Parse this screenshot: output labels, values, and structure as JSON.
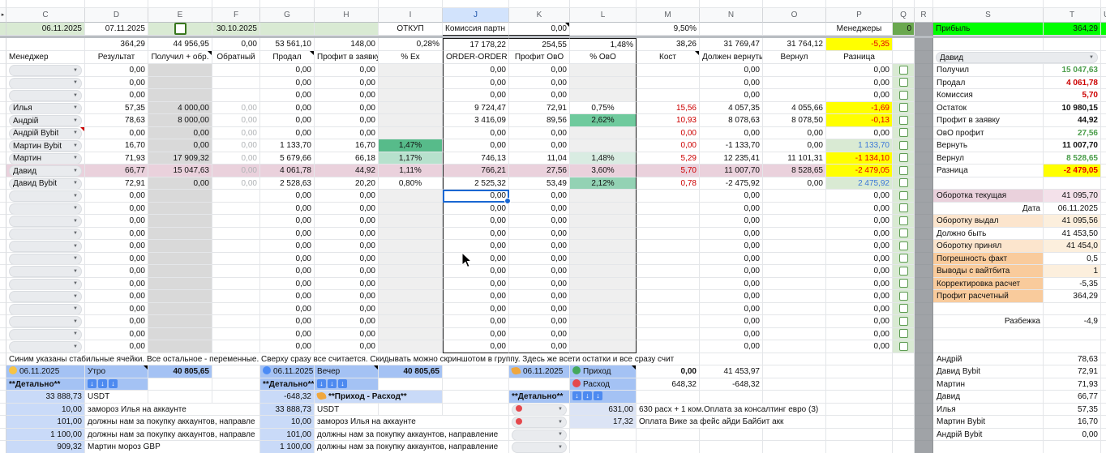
{
  "columns": {
    "letters": [
      "C",
      "D",
      "E",
      "F",
      "G",
      "H",
      "I",
      "J",
      "K",
      "L",
      "M",
      "N",
      "O",
      "P",
      "Q",
      "R",
      "S",
      "T",
      "U"
    ],
    "selected": "J"
  },
  "freeze": {
    "date_row": {
      "c": "06.11.2025",
      "d": "07.11.2025",
      "f": "30.10.2025",
      "i": "ОТКУП",
      "j": "Комиссия партн",
      "k": "0,00",
      "m": "9,50%",
      "p": "Менеджеры",
      "q": "0",
      "s": "Прибыль",
      "t": "364,29"
    },
    "totals_row": {
      "d": "364,29",
      "e": "44 956,95",
      "f": "0,00",
      "g": "53 561,10",
      "h": "148,00",
      "i": "0,28%",
      "j": "17 178,22",
      "k": "254,55",
      "l": "1,48%",
      "m": "38,26",
      "n": "31 769,47",
      "o": "31 764,12",
      "p": "-5,35"
    },
    "header_row": {
      "c": "Менеджер",
      "d": "Результат",
      "e": "Получил + обр.",
      "f": "Обратный",
      "g": "Продал",
      "h": "Профит в заявку",
      "i": "% Ex",
      "j": "ORDER-ORDER",
      "k": "Профит ОвО",
      "l": "% ОвО",
      "m": "Кост",
      "n": "Должен вернуть",
      "o": "Вернул",
      "p": "Разница"
    }
  },
  "rows": [
    {
      "d": "0,00",
      "g": "0,00",
      "h": "0,00",
      "j": "0,00",
      "k": "0,00",
      "n": "0,00",
      "p": "0,00"
    },
    {
      "d": "0,00",
      "g": "0,00",
      "h": "0,00",
      "j": "0,00",
      "k": "0,00",
      "n": "0,00",
      "p": "0,00"
    },
    {
      "d": "0,00",
      "g": "0,00",
      "h": "0,00",
      "j": "0,00",
      "k": "0,00",
      "n": "0,00",
      "p": "0,00"
    },
    {
      "c": "Илья",
      "d": "57,35",
      "e": "4 000,00",
      "f": "0,00",
      "g": "0,00",
      "h": "0,00",
      "j": "9 724,47",
      "k": "72,91",
      "l": "0,75%",
      "ls": "white",
      "m": "15,56",
      "n": "4 057,35",
      "o": "4 055,66",
      "p": "-1,69",
      "ps": "yellow"
    },
    {
      "c": "Андрій",
      "d": "78,63",
      "e": "8 000,00",
      "f": "0,00",
      "g": "0,00",
      "h": "0,00",
      "j": "3 416,09",
      "k": "89,56",
      "l": "2,62%",
      "ls": "g2",
      "m": "10,93",
      "n": "8 078,63",
      "o": "8 078,50",
      "p": "-0,13",
      "ps": "yellow"
    },
    {
      "c": "Андрій Bybit",
      "rnote": true,
      "d": "0,00",
      "e": "0,00",
      "f": "0,00",
      "g": "0,00",
      "h": "0,00",
      "j": "0,00",
      "k": "0,00",
      "m": "0,00",
      "n": "0,00",
      "o": "0,00",
      "p": "0,00"
    },
    {
      "c": "Мартин Bybit",
      "d": "16,70",
      "e": "0,00",
      "f": "0,00",
      "g": "1 133,70",
      "h": "16,70",
      "i": "1,47%",
      "is": "g1",
      "j": "0,00",
      "k": "0,00",
      "m": "0,00",
      "n": "-1 133,70",
      "o": "0,00",
      "p": "1 133,70",
      "ps": "gb"
    },
    {
      "c": "Мартин",
      "d": "71,93",
      "e": "17 909,32",
      "f": "0,00",
      "g": "5 679,66",
      "h": "66,18",
      "i": "1,17%",
      "is": "g3",
      "j": "746,13",
      "k": "11,04",
      "l": "1,48%",
      "ls": "g4",
      "m": "5,29",
      "n": "12 235,41",
      "o": "11 101,31",
      "p": "-1 134,10",
      "ps": "yellow"
    },
    {
      "c": "Давид",
      "pink": true,
      "d": "66,77",
      "e": "15 047,63",
      "f": "0,00",
      "g": "4 061,78",
      "h": "44,92",
      "i": "1,11%",
      "is": "pink",
      "j": "766,21",
      "k": "27,56",
      "l": "3,60%",
      "ls": "pink",
      "m": "5,70",
      "n": "11 007,70",
      "o": "8 528,65",
      "p": "-2 479,05",
      "ps": "yellow"
    },
    {
      "c": "Давид Bybit",
      "d": "72,91",
      "e": "0,00",
      "f": "0,00",
      "g": "2 528,63",
      "h": "20,20",
      "i": "0,80%",
      "is": "white",
      "j": "2 525,32",
      "k": "53,49",
      "l": "2,12%",
      "ls": "g2b",
      "m": "0,78",
      "n": "-2 475,92",
      "o": "0,00",
      "p": "2 475,92",
      "ps": "gb"
    },
    {
      "d": "0,00",
      "g": "0,00",
      "h": "0,00",
      "j": "0,00",
      "k": "0,00",
      "n": "0,00",
      "p": "0,00",
      "sel": true
    },
    {
      "d": "0,00",
      "g": "0,00",
      "h": "0,00",
      "j": "0,00",
      "k": "0,00",
      "n": "0,00",
      "p": "0,00"
    },
    {
      "d": "0,00",
      "g": "0,00",
      "h": "0,00",
      "j": "0,00",
      "k": "0,00",
      "n": "0,00",
      "p": "0,00"
    },
    {
      "d": "0,00",
      "g": "0,00",
      "h": "0,00",
      "j": "0,00",
      "k": "0,00",
      "n": "0,00",
      "p": "0,00"
    },
    {
      "d": "0,00",
      "g": "0,00",
      "h": "0,00",
      "j": "0,00",
      "k": "0,00",
      "n": "0,00",
      "p": "0,00"
    },
    {
      "d": "0,00",
      "g": "0,00",
      "h": "0,00",
      "j": "0,00",
      "k": "0,00",
      "n": "0,00",
      "p": "0,00"
    },
    {
      "d": "0,00",
      "g": "0,00",
      "h": "0,00",
      "j": "0,00",
      "k": "0,00",
      "n": "0,00",
      "p": "0,00"
    },
    {
      "d": "0,00",
      "g": "0,00",
      "h": "0,00",
      "j": "0,00",
      "k": "0,00",
      "n": "0,00",
      "p": "0,00"
    },
    {
      "d": "0,00",
      "g": "0,00",
      "h": "0,00",
      "j": "0,00",
      "k": "0,00",
      "n": "0,00",
      "p": "0,00"
    },
    {
      "d": "0,00",
      "g": "0,00",
      "h": "0,00",
      "j": "0,00",
      "k": "0,00",
      "n": "0,00",
      "p": "0,00"
    },
    {
      "d": "0,00",
      "g": "0,00",
      "h": "0,00",
      "j": "0,00",
      "k": "0,00",
      "n": "0,00",
      "p": "0,00"
    },
    {
      "d": "0,00",
      "g": "0,00",
      "h": "0,00",
      "j": "0,00",
      "k": "0,00",
      "n": "0,00",
      "p": "0,00"
    },
    {
      "d": "0,00",
      "g": "0,00",
      "h": "0,00",
      "j": "0,00",
      "k": "0,00",
      "n": "0,00",
      "p": "0,00"
    }
  ],
  "panel": {
    "selector": "Давид",
    "items": [
      {
        "s": "Получил",
        "t": "15 047,63",
        "ts": "green"
      },
      {
        "s": "Продал",
        "t": "4 061,78",
        "ts": "red"
      },
      {
        "s": "Комиссия",
        "t": "5,70",
        "ts": "red"
      },
      {
        "s": "Остаток",
        "t": "10 980,15",
        "ts": "bold"
      },
      {
        "s": "Профит в заявку",
        "t": "44,92",
        "ts": "bold"
      },
      {
        "s": "ОвО профит",
        "t": "27,56",
        "ts": "green"
      },
      {
        "s": "Вернуть",
        "t": "11 007,70",
        "ts": "bold"
      },
      {
        "s": "Вернул",
        "t": "8 528,65",
        "ts": "green"
      },
      {
        "s": "Разница",
        "t": "-2 479,05",
        "ts": "redyellow"
      },
      {},
      {
        "s": "Оборотка текущая",
        "ss": "pink",
        "t": "41 095,70",
        "ts": "pinkl"
      },
      {
        "s": "Дата",
        "ss": "right",
        "t": "06.11.2025"
      },
      {
        "s": "Оборотку выдал",
        "ss": "cream",
        "t": "41 095,56",
        "ts": "creaml"
      },
      {
        "s": "Должно быть",
        "t": "41 453,50"
      },
      {
        "s": "Оборотку принял",
        "ss": "cream",
        "t": "41 454,0",
        "ts": "creaml"
      },
      {
        "s": "Погрешность факт",
        "ss": "orange",
        "t": "0,5"
      },
      {
        "s": "Выводы с вайтбита",
        "ss": "orange",
        "t": "1",
        "ts": "creaml"
      },
      {
        "s": "Корректировка расчет",
        "ss": "orange",
        "t": "-5,35"
      },
      {
        "s": "Профит расчетный",
        "ss": "orange",
        "t": "364,29"
      },
      {},
      {
        "s": "Разбежка",
        "ss": "right",
        "t": "-4,9"
      },
      {},
      {}
    ]
  },
  "note": "Синим указаны стабильные ячейки. Все остальное - переменные. Сверху сразу все считается. Скидывать можно скриншотом в группу. Здесь же всети остатки и все сразу счит",
  "ranking": [
    {
      "name": "Андрій",
      "v": "78,63"
    },
    {
      "name": "Давид Bybit",
      "v": "72,91"
    },
    {
      "name": "Мартин",
      "v": "71,93"
    },
    {
      "name": "Давид",
      "v": "66,77"
    },
    {
      "name": "Илья",
      "v": "57,35"
    },
    {
      "name": "Мартин Bybit",
      "v": "16,70"
    },
    {
      "name": "Андрій Bybit",
      "v": "0,00"
    },
    {}
  ],
  "bottom": {
    "rows": [
      {
        "cells": [
          {
            "col": 2,
            "cls": "bb-h",
            "dot": "#f6c344",
            "text": "06.11.2025"
          },
          {
            "col": 3,
            "cls": "bb-h note",
            "text": "Утро"
          },
          {
            "col": 4,
            "cls": "bb-h num b",
            "text": "40 805,65"
          },
          {
            "col": 6,
            "cls": "bb-h",
            "dot": "#4b8bf5",
            "text": "06.11.2025"
          },
          {
            "col": 7,
            "cls": "bb-h note",
            "text": "Вечер"
          },
          {
            "col": 8,
            "cls": "bb-h num b",
            "text": "40 805,65"
          },
          {
            "col": 10,
            "cls": "bb-h",
            "hand": true,
            "text": "06.11.2025"
          },
          {
            "col": 11,
            "cls": "bb-h note",
            "dot": "#43a85c",
            "text": "Приход"
          },
          {
            "col": 12,
            "cls": "num b",
            "text": "0,00"
          },
          {
            "col": 13,
            "cls": "num",
            "text": "41 453,97"
          }
        ]
      },
      {
        "cells": [
          {
            "col": 2,
            "cls": "bb-h b",
            "text": "**Детально**"
          },
          {
            "col": 3,
            "cls": "bb-h",
            "arrows": true
          },
          {
            "col": 6,
            "cls": "bb-h b",
            "text": "**Детально**"
          },
          {
            "col": 7,
            "cls": "bb-h",
            "arrows": true
          },
          {
            "col": 11,
            "cls": "bb-h",
            "dot": "#e5484d",
            "text": "Расход"
          },
          {
            "col": 12,
            "cls": "num",
            "text": "648,32"
          },
          {
            "col": 13,
            "cls": "num",
            "text": "-648,32"
          }
        ]
      },
      {
        "cells": [
          {
            "col": 2,
            "cls": "bb-l num",
            "text": "33 888,73"
          },
          {
            "col": 3,
            "text": "USDT"
          },
          {
            "col": 6,
            "cls": "bb-l num",
            "text": "-648,32"
          },
          {
            "col": 7,
            "span": 2,
            "cls": "bb-l b",
            "hand": true,
            "text": "**Приход - Расход**"
          },
          {
            "col": 10,
            "cls": "bb-h b",
            "text": "**Детально**"
          },
          {
            "col": 11,
            "cls": "bb-h",
            "arrows": true
          }
        ]
      },
      {
        "cells": [
          {
            "col": 2,
            "cls": "bb-l num",
            "text": "10,00"
          },
          {
            "col": 3,
            "span": 3,
            "text": "замороз Илья на аккаунте"
          },
          {
            "col": 6,
            "cls": "bb-l num",
            "text": "33 888,73"
          },
          {
            "col": 7,
            "text": "USDT"
          },
          {
            "col": 10,
            "pill": true,
            "pillDot": true
          },
          {
            "col": 11,
            "cls": "bb-g num",
            "text": "631,00"
          },
          {
            "col": 12,
            "span": 3,
            "text": "630 расх + 1 ком.Оплата за консалтинг евро (3)"
          }
        ]
      },
      {
        "cells": [
          {
            "col": 2,
            "cls": "bb-l num",
            "text": "101,00"
          },
          {
            "col": 3,
            "span": 3,
            "text": "должны нам за покупку аккаунтов, направле"
          },
          {
            "col": 6,
            "cls": "bb-l num",
            "text": "10,00"
          },
          {
            "col": 7,
            "span": 3,
            "text": "замороз Илья на аккаунте"
          },
          {
            "col": 10,
            "pill": true,
            "pillDot": true
          },
          {
            "col": 11,
            "cls": "bb-g num",
            "text": "17,32"
          },
          {
            "col": 12,
            "span": 3,
            "text": "Оплата Вике за фейс айди Байбит акк"
          }
        ]
      },
      {
        "cells": [
          {
            "col": 2,
            "cls": "bb-l num",
            "text": "1 100,00"
          },
          {
            "col": 3,
            "span": 3,
            "text": "должны нам за покупку аккаунтов, направле"
          },
          {
            "col": 6,
            "cls": "bb-l num",
            "text": "101,00"
          },
          {
            "col": 7,
            "span": 3,
            "text": "должны нам за покупку аккаунтов, направление"
          },
          {
            "col": 10,
            "pill": true
          }
        ]
      },
      {
        "cells": [
          {
            "col": 2,
            "cls": "bb-l num",
            "text": "909,32"
          },
          {
            "col": 3,
            "span": 3,
            "text": "Мартин мороз GBP"
          },
          {
            "col": 6,
            "cls": "bb-l num",
            "text": "1 100,00"
          },
          {
            "col": 7,
            "span": 3,
            "text": "должны нам за покупку аккаунтов, направление"
          },
          {
            "col": 10,
            "pill": true
          }
        ]
      }
    ]
  }
}
